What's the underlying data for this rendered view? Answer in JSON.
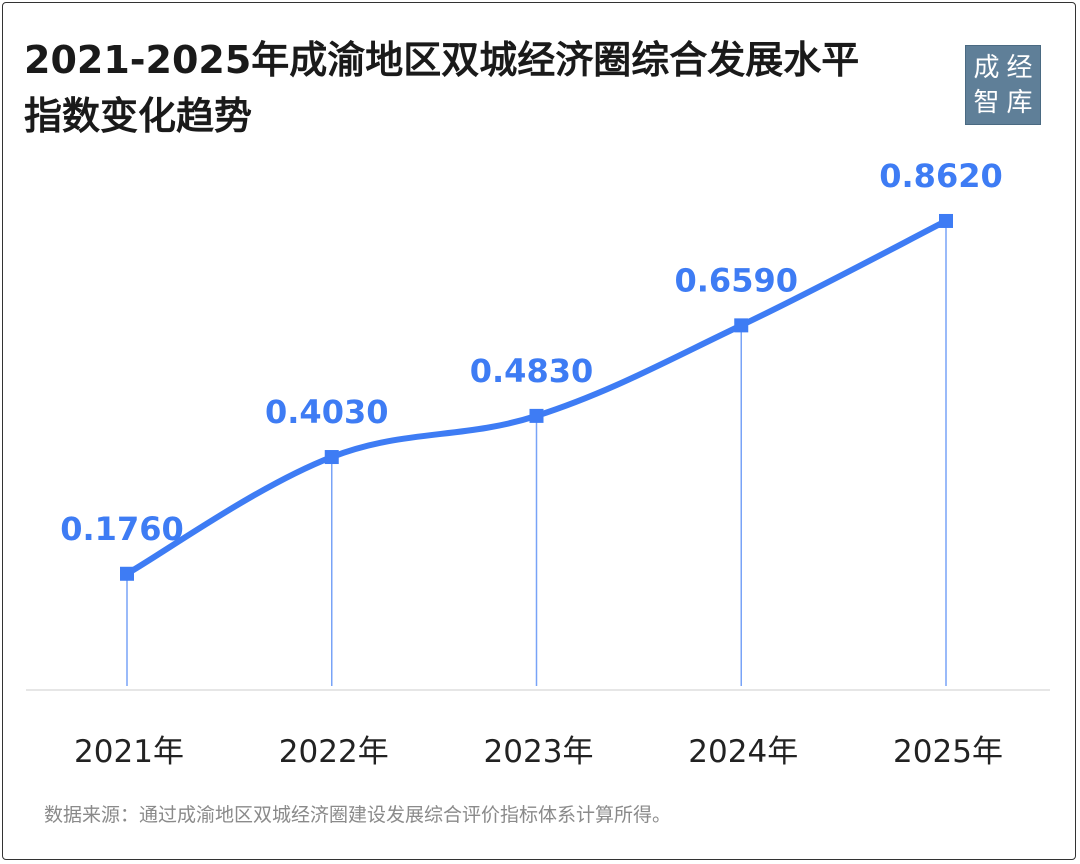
{
  "title_line1": "2021-2025年成渝地区双城经济圈综合发展水平",
  "title_line2": "指数变化趋势",
  "logo": {
    "chars": [
      "成",
      "经",
      "智",
      "库"
    ]
  },
  "source": "数据来源：通过成渝地区双城经济圈建设发展综合评价指标体系计算所得。",
  "colors": {
    "line": "#3e7cf4",
    "label": "#3e7cf4",
    "axis": "#e6e6e6",
    "tick": "#222222"
  },
  "chart_data": {
    "type": "line",
    "title": "2021-2025年成渝地区双城经济圈综合发展水平指数变化趋势",
    "categories": [
      "2021年",
      "2022年",
      "2023年",
      "2024年",
      "2025年"
    ],
    "values": [
      0.176,
      0.403,
      0.483,
      0.659,
      0.862
    ],
    "value_labels": [
      "0.1760",
      "0.4030",
      "0.4830",
      "0.6590",
      "0.8620"
    ],
    "xlabel": "",
    "ylabel": "",
    "ylim": [
      -0.05,
      1.0
    ],
    "grid": false,
    "legend": "none",
    "smooth": true,
    "marker": "square"
  }
}
